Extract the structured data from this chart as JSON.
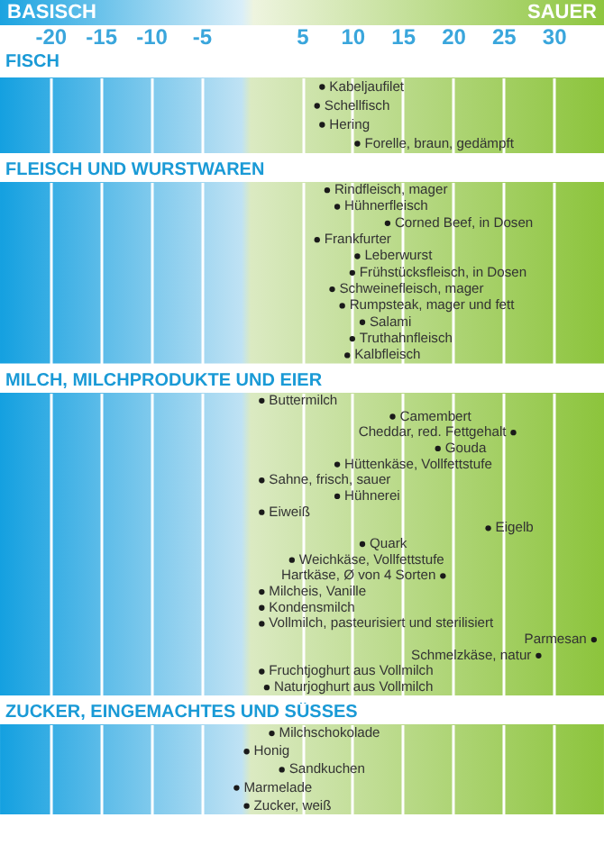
{
  "chart_data": [
    {
      "type": "scatter",
      "orientation": "horizontal",
      "title": "FISCH",
      "annotations": [
        "BASISCH",
        "SAUER"
      ],
      "categories": [
        "Kabeljaufilet",
        "Schellfisch",
        "Hering",
        "Forelle, braun, gedämpft"
      ],
      "values": [
        7,
        6.5,
        7,
        10.5
      ],
      "color": "#1a1a1a",
      "marker": "circle",
      "xlim": [
        -25,
        35
      ],
      "xticks": [
        -20,
        -15,
        -10,
        -5,
        5,
        10,
        15,
        20,
        25,
        30
      ],
      "grid": "x",
      "tick_labels": "x"
    },
    {
      "type": "scatter",
      "orientation": "horizontal",
      "title": "FLEISCH UND WURSTWAREN",
      "categories": [
        "Rindfleisch, mager",
        "Hühnerfleisch",
        "Corned Beef, in Dosen",
        "Frankfurter",
        "Leberwurst",
        "Frühstücksfleisch, in Dosen",
        "Schweinefleisch, mager",
        "Rumpsteak, mager und fett",
        "Salami",
        "Truthahnfleisch",
        "Kalbfleisch"
      ],
      "values": [
        7.5,
        8.5,
        13.5,
        6.5,
        10.5,
        10,
        8,
        9,
        11,
        10,
        9.5
      ],
      "color": "#1a1a1a",
      "marker": "circle",
      "xlim": [
        -25,
        35
      ],
      "xticks": [
        -20,
        -15,
        -10,
        -5,
        5,
        10,
        15,
        20,
        25,
        30
      ],
      "grid": "x",
      "tick_labels": false
    },
    {
      "type": "scatter",
      "orientation": "horizontal",
      "title": "MILCH, MILCHPRODUKTE UND EIER",
      "categories": [
        "Buttermilch",
        "Camembert",
        "Cheddar, red. Fettgehalt",
        "Gouda",
        "Hüttenkäse, Vollfettstufe",
        "Sahne, frisch, sauer",
        "Hühnerei",
        "Eiweiß",
        "Eigelb",
        "Quark",
        "Weichkäse, Vollfettstufe",
        "Hartkäse, Ø von 4 Sorten",
        "Milcheis, Vanille",
        "Kondensmilch",
        "Vollmilch, pasteurisiert und sterilisiert",
        "Parmesan",
        "Schmelzkäse, natur",
        "Fruchtjoghurt aus Vollmilch",
        "Naturjoghurt aus Vollmilch"
      ],
      "values": [
        1,
        14,
        26,
        18.5,
        8.5,
        1,
        8.5,
        1,
        23.5,
        11,
        4,
        19,
        1,
        1,
        1,
        34,
        28.5,
        1,
        1.5
      ],
      "color": "#1a1a1a",
      "marker": "circle",
      "xlim": [
        -25,
        35
      ],
      "xticks": [
        -20,
        -15,
        -10,
        -5,
        5,
        10,
        15,
        20,
        25,
        30
      ],
      "grid": "x",
      "tick_labels": false
    },
    {
      "type": "scatter",
      "orientation": "horizontal",
      "title": "ZUCKER, EINGEMACHTES UND SÜSSES",
      "categories": [
        "Milchschokolade",
        "Honig",
        "Sandkuchen",
        "Marmelade",
        "Zucker, weiß"
      ],
      "values": [
        2,
        -0.5,
        3,
        -1.5,
        -0.5
      ],
      "color": "#1a1a1a",
      "marker": "circle",
      "xlim": [
        -25,
        35
      ],
      "xticks": [
        -20,
        -15,
        -10,
        -5,
        5,
        10,
        15,
        20,
        25,
        30
      ],
      "grid": "x",
      "tick_labels": false
    }
  ]
}
